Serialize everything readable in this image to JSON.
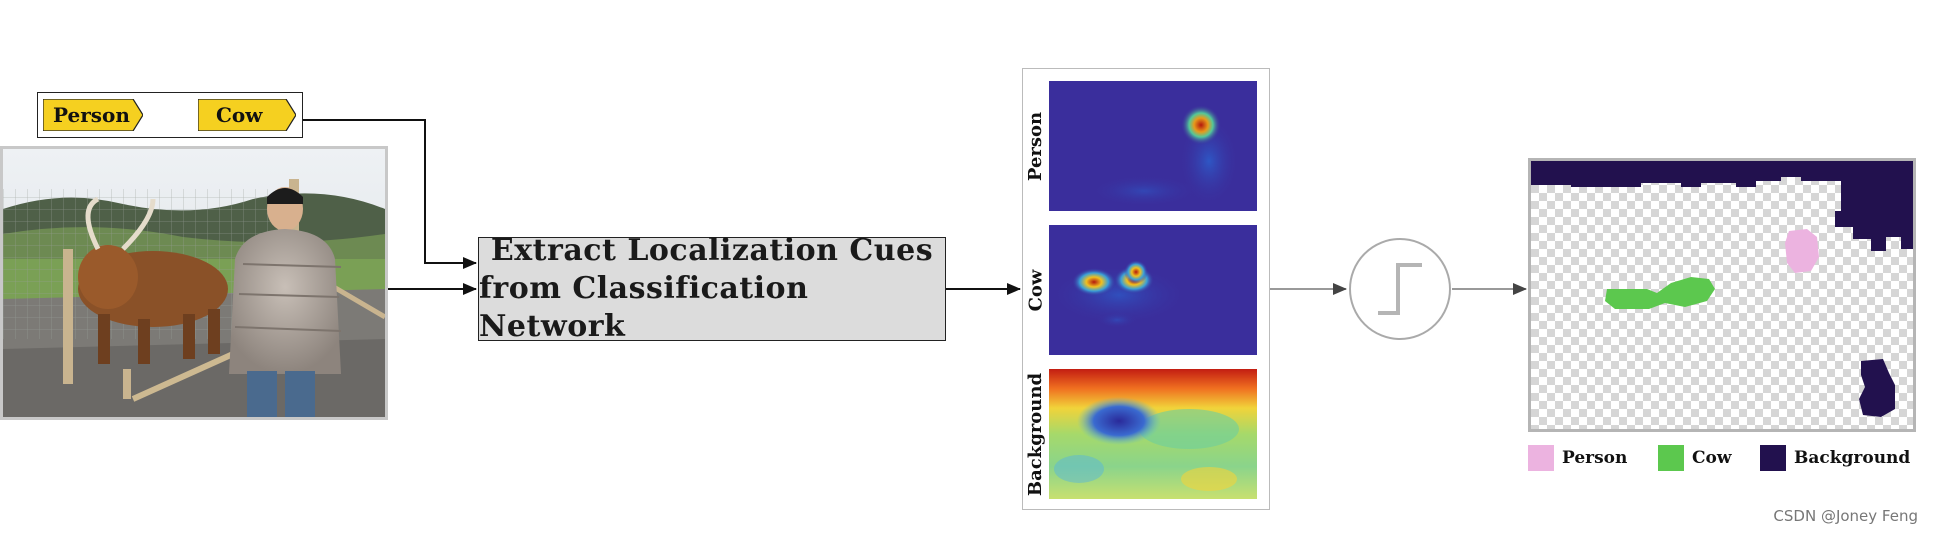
{
  "labels": {
    "person": "Person",
    "cow": "Cow",
    "tag_color": "#f5d020"
  },
  "process_box": {
    "line1": "Extract Localization Cues",
    "line2": "from Classification Network"
  },
  "heatmaps": [
    {
      "label": "Person"
    },
    {
      "label": "Cow"
    },
    {
      "label": "Background"
    }
  ],
  "legend": [
    {
      "label": "Person",
      "color": "#ecb3e0"
    },
    {
      "label": "Cow",
      "color": "#5cc84e"
    },
    {
      "label": "Background",
      "color": "#22114e"
    }
  ],
  "watermark": "CSDN @Joney Feng"
}
